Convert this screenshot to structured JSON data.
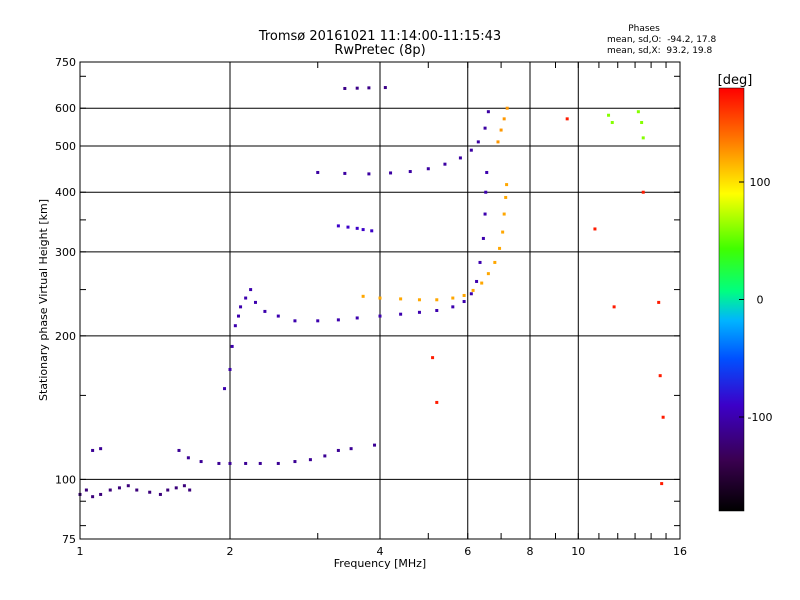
{
  "chart_data": {
    "type": "scatter",
    "title": "Tromsø 20161021 11:14:00-11:15:43",
    "subtitle": "RwPretec (8p)",
    "xlabel": "Frequency [MHz]",
    "ylabel": "Stationary phase Virtual Height [km]",
    "x_scale": "log",
    "y_scale": "log",
    "xlim": [
      1,
      16
    ],
    "ylim": [
      75,
      750
    ],
    "x_ticks": [
      1,
      2,
      4,
      6,
      8,
      10,
      16
    ],
    "y_ticks": [
      75,
      100,
      200,
      300,
      400,
      500,
      600,
      750
    ],
    "grid": true,
    "phase_stats": {
      "title": "Phases",
      "line_o": "mean, sd,O:  -94.2, 17.8",
      "line_x": "mean, sd,X:  93.2, 19.8"
    },
    "colorbar": {
      "label": "[deg]",
      "range": [
        -180,
        180
      ],
      "ticks": [
        100,
        0,
        -100
      ],
      "tick_labels": [
        "100",
        "0",
        "-100"
      ]
    },
    "traces": [
      {
        "name": "",
        "phase": -120,
        "points": [
          [
            1.0,
            93
          ],
          [
            1.03,
            95
          ],
          [
            1.06,
            92
          ],
          [
            1.1,
            93
          ],
          [
            1.15,
            95
          ],
          [
            1.2,
            96
          ],
          [
            1.25,
            97
          ],
          [
            1.3,
            95
          ],
          [
            1.38,
            94
          ],
          [
            1.45,
            93
          ],
          [
            1.5,
            95
          ],
          [
            1.56,
            96
          ],
          [
            1.62,
            97
          ],
          [
            1.66,
            95
          ]
        ]
      },
      {
        "name": "",
        "phase": -110,
        "points": [
          [
            1.06,
            115
          ],
          [
            1.1,
            116
          ],
          [
            1.58,
            115
          ],
          [
            1.65,
            111
          ],
          [
            1.75,
            109
          ],
          [
            1.9,
            108
          ],
          [
            2.0,
            108
          ],
          [
            2.15,
            108
          ],
          [
            2.3,
            108
          ],
          [
            2.5,
            108
          ],
          [
            2.7,
            109
          ],
          [
            2.9,
            110
          ],
          [
            3.1,
            112
          ],
          [
            3.3,
            115
          ],
          [
            3.5,
            116
          ],
          [
            3.9,
            118
          ]
        ]
      },
      {
        "name": "",
        "phase": -100,
        "points": [
          [
            1.95,
            155
          ],
          [
            2.0,
            170
          ],
          [
            2.02,
            190
          ],
          [
            2.05,
            210
          ],
          [
            2.08,
            220
          ],
          [
            2.1,
            230
          ],
          [
            2.15,
            240
          ],
          [
            2.2,
            250
          ],
          [
            2.25,
            235
          ],
          [
            2.35,
            225
          ],
          [
            2.5,
            220
          ],
          [
            2.7,
            215
          ],
          [
            3.0,
            215
          ],
          [
            3.3,
            216
          ],
          [
            3.6,
            218
          ],
          [
            4.0,
            220
          ],
          [
            4.4,
            222
          ],
          [
            4.8,
            224
          ],
          [
            5.2,
            226
          ],
          [
            5.6,
            230
          ],
          [
            5.9,
            236
          ],
          [
            6.1,
            245
          ],
          [
            6.25,
            260
          ],
          [
            6.35,
            285
          ],
          [
            6.45,
            320
          ],
          [
            6.5,
            360
          ],
          [
            6.52,
            400
          ],
          [
            6.55,
            440
          ]
        ]
      },
      {
        "name": "",
        "phase": -105,
        "points": [
          [
            3.0,
            440
          ],
          [
            3.4,
            438
          ],
          [
            3.8,
            437
          ],
          [
            4.2,
            439
          ],
          [
            4.6,
            442
          ],
          [
            5.0,
            448
          ],
          [
            5.4,
            458
          ],
          [
            5.8,
            472
          ],
          [
            6.1,
            490
          ],
          [
            6.3,
            510
          ],
          [
            6.5,
            545
          ],
          [
            6.6,
            590
          ]
        ]
      },
      {
        "name": "",
        "phase": -90,
        "points": [
          [
            3.3,
            340
          ],
          [
            3.45,
            338
          ],
          [
            3.6,
            336
          ],
          [
            3.7,
            334
          ],
          [
            3.85,
            332
          ]
        ]
      },
      {
        "name": "",
        "phase": -115,
        "points": [
          [
            3.4,
            660
          ],
          [
            3.6,
            661
          ],
          [
            3.8,
            662
          ],
          [
            4.1,
            663
          ]
        ]
      },
      {
        "name": "",
        "phase": 120,
        "points": [
          [
            3.7,
            242
          ],
          [
            4.0,
            240
          ],
          [
            4.4,
            239
          ],
          [
            4.8,
            238
          ],
          [
            5.2,
            238
          ],
          [
            5.6,
            240
          ],
          [
            5.9,
            243
          ],
          [
            6.15,
            249
          ],
          [
            6.4,
            258
          ],
          [
            6.6,
            270
          ],
          [
            6.8,
            285
          ],
          [
            6.95,
            305
          ],
          [
            7.05,
            330
          ],
          [
            7.1,
            360
          ],
          [
            7.15,
            390
          ],
          [
            7.18,
            415
          ]
        ]
      },
      {
        "name": "",
        "phase": 125,
        "points": [
          [
            6.9,
            510
          ],
          [
            7.0,
            540
          ],
          [
            7.1,
            570
          ],
          [
            7.2,
            600
          ]
        ]
      },
      {
        "name": "",
        "phase": 60,
        "points": [
          [
            11.5,
            580
          ],
          [
            11.7,
            560
          ],
          [
            13.2,
            590
          ],
          [
            13.4,
            560
          ],
          [
            13.5,
            520
          ]
        ]
      },
      {
        "name": "",
        "phase": 170,
        "points": [
          [
            5.1,
            180
          ],
          [
            5.2,
            145
          ],
          [
            9.5,
            570
          ],
          [
            10.8,
            335
          ],
          [
            11.8,
            230
          ],
          [
            13.5,
            400
          ],
          [
            14.5,
            235
          ],
          [
            14.6,
            165
          ],
          [
            14.8,
            135
          ],
          [
            14.7,
            98
          ]
        ]
      }
    ]
  }
}
